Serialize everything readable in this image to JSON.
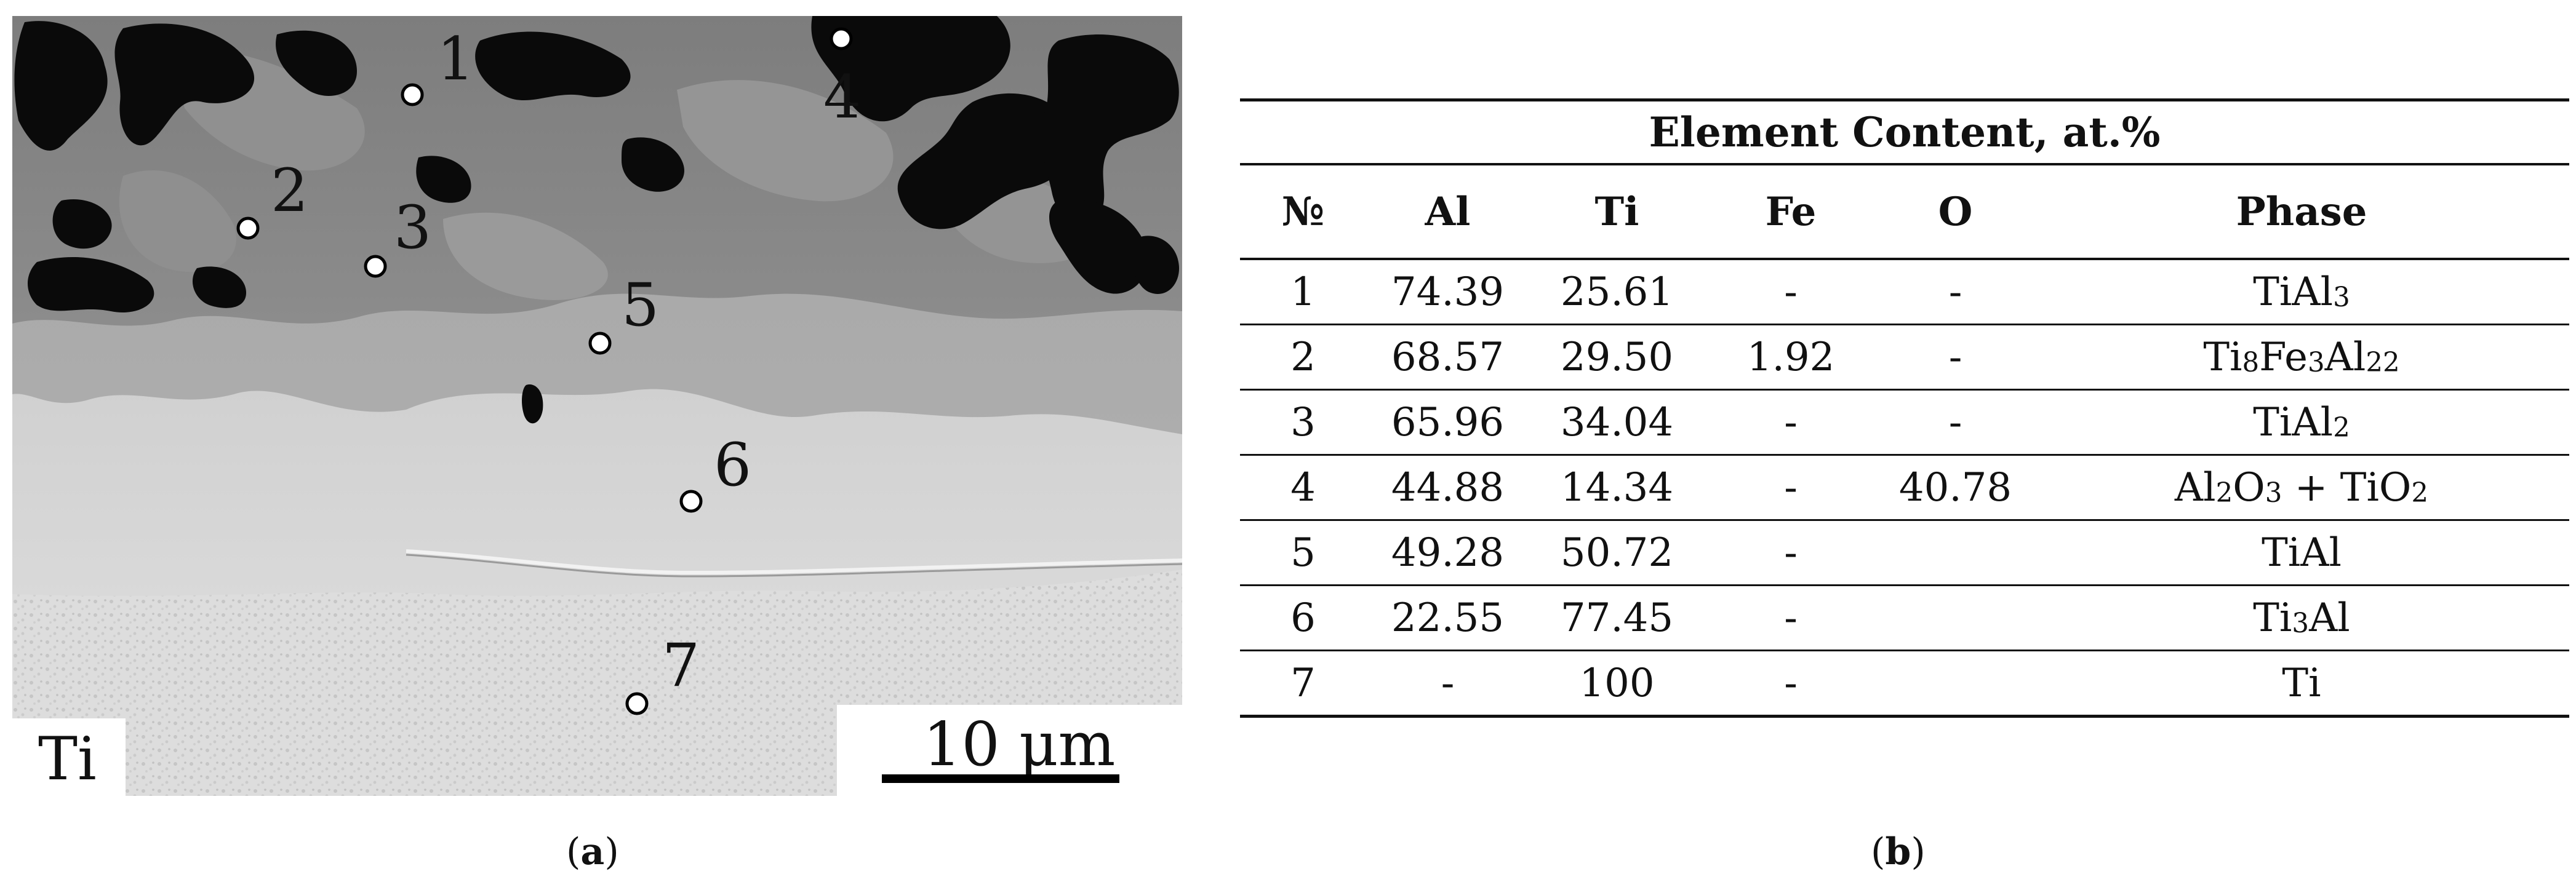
{
  "panel_a": {
    "points": [
      "1",
      "2",
      "3",
      "4",
      "5",
      "6",
      "7"
    ],
    "region_label": "Ti",
    "scale_bar_label": "10 µm",
    "caption": "a"
  },
  "panel_b": {
    "title": "Element Content, at.%",
    "columns": [
      "№",
      "Al",
      "Ti",
      "Fe",
      "O",
      "Phase"
    ],
    "rows": [
      {
        "no": "1",
        "al": "74.39",
        "ti": "25.61",
        "fe": "-",
        "o": "-",
        "phase": "TiAl3"
      },
      {
        "no": "2",
        "al": "68.57",
        "ti": "29.50",
        "fe": "1.92",
        "o": "-",
        "phase": "Ti8Fe3Al22"
      },
      {
        "no": "3",
        "al": "65.96",
        "ti": "34.04",
        "fe": "-",
        "o": "-",
        "phase": "TiAl2"
      },
      {
        "no": "4",
        "al": "44.88",
        "ti": "14.34",
        "fe": "-",
        "o": "40.78",
        "phase": "Al2O3 + TiO2"
      },
      {
        "no": "5",
        "al": "49.28",
        "ti": "50.72",
        "fe": "-",
        "o": "",
        "phase": "TiAl"
      },
      {
        "no": "6",
        "al": "22.55",
        "ti": "77.45",
        "fe": "-",
        "o": "",
        "phase": "Ti3Al"
      },
      {
        "no": "7",
        "al": "-",
        "ti": "100",
        "fe": "-",
        "o": "",
        "phase": "Ti"
      }
    ],
    "caption": "b"
  }
}
